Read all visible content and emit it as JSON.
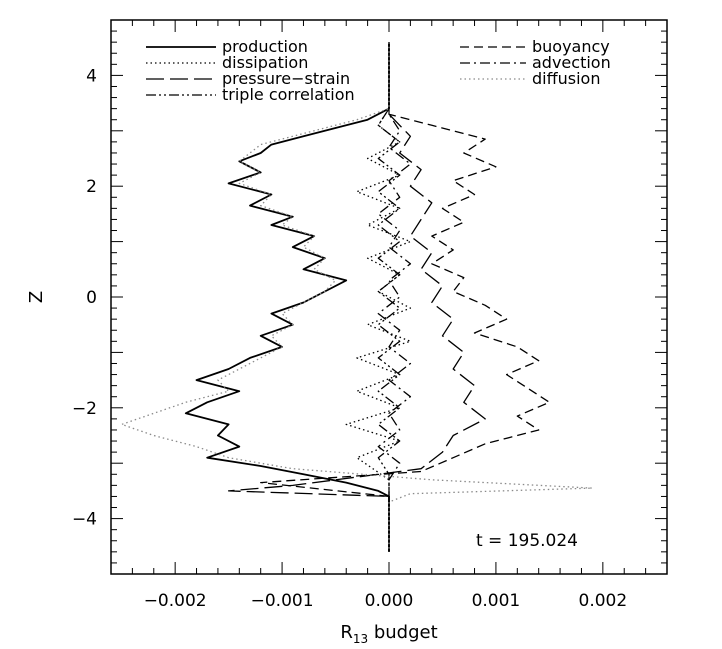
{
  "chart_data": {
    "type": "line",
    "title": "",
    "xlabel": "R",
    "xlabel_sub": "13",
    "xlabel_suffix": " budget",
    "ylabel": "Z",
    "xlim": [
      -0.0026,
      0.0026
    ],
    "ylim": [
      -5,
      5
    ],
    "x_ticks": [
      -0.002,
      -0.001,
      0.0,
      0.001,
      0.002
    ],
    "x_tick_labels": [
      "−0.002",
      "−0.001",
      "0.000",
      "0.001",
      "0.002"
    ],
    "y_ticks": [
      -4,
      -2,
      0,
      2,
      4
    ],
    "y_tick_labels": [
      "−4",
      "−2",
      "0",
      "2",
      "4"
    ],
    "grid": false,
    "annotation": "t = 195.024",
    "legend_left": [
      "production",
      "dissipation",
      "pressure−strain",
      "triple correlation"
    ],
    "legend_right": [
      "buoyancy",
      "advection",
      "diffusion"
    ],
    "series": [
      {
        "name": "production",
        "style": "solid",
        "color": "#000000",
        "points": [
          [
            0.0,
            4.6
          ],
          [
            0.0,
            3.4
          ],
          [
            -0.0002,
            3.2
          ],
          [
            -0.0005,
            3.05
          ],
          [
            -0.0008,
            2.9
          ],
          [
            -0.0011,
            2.75
          ],
          [
            -0.0012,
            2.6
          ],
          [
            -0.0014,
            2.45
          ],
          [
            -0.0012,
            2.25
          ],
          [
            -0.0015,
            2.05
          ],
          [
            -0.0011,
            1.85
          ],
          [
            -0.0013,
            1.65
          ],
          [
            -0.0009,
            1.45
          ],
          [
            -0.0011,
            1.3
          ],
          [
            -0.0007,
            1.1
          ],
          [
            -0.0009,
            0.9
          ],
          [
            -0.0006,
            0.7
          ],
          [
            -0.0008,
            0.5
          ],
          [
            -0.0004,
            0.3
          ],
          [
            -0.0006,
            0.1
          ],
          [
            -0.0008,
            -0.1
          ],
          [
            -0.0011,
            -0.3
          ],
          [
            -0.0009,
            -0.5
          ],
          [
            -0.0012,
            -0.7
          ],
          [
            -0.001,
            -0.9
          ],
          [
            -0.0013,
            -1.1
          ],
          [
            -0.0015,
            -1.3
          ],
          [
            -0.0018,
            -1.5
          ],
          [
            -0.0014,
            -1.7
          ],
          [
            -0.0017,
            -1.9
          ],
          [
            -0.0019,
            -2.1
          ],
          [
            -0.0015,
            -2.3
          ],
          [
            -0.0016,
            -2.5
          ],
          [
            -0.0014,
            -2.7
          ],
          [
            -0.0017,
            -2.9
          ],
          [
            -0.0012,
            -3.05
          ],
          [
            -0.0008,
            -3.2
          ],
          [
            -0.0004,
            -3.35
          ],
          [
            -0.0001,
            -3.5
          ],
          [
            0.0,
            -3.6
          ],
          [
            0.0,
            -4.6
          ]
        ]
      },
      {
        "name": "dissipation",
        "style": "dotted",
        "color": "#000000",
        "points": [
          [
            0.0,
            4.6
          ],
          [
            0.0,
            3.4
          ],
          [
            -0.0001,
            3.1
          ],
          [
            0.0001,
            2.8
          ],
          [
            -0.0002,
            2.5
          ],
          [
            0.0001,
            2.2
          ],
          [
            -0.0003,
            1.9
          ],
          [
            0.0001,
            1.6
          ],
          [
            -0.0002,
            1.3
          ],
          [
            0.0002,
            1.0
          ],
          [
            -0.0002,
            0.7
          ],
          [
            0.0001,
            0.4
          ],
          [
            -0.0001,
            0.1
          ],
          [
            0.0002,
            -0.2
          ],
          [
            -0.0002,
            -0.5
          ],
          [
            0.0002,
            -0.8
          ],
          [
            -0.0003,
            -1.1
          ],
          [
            0.0001,
            -1.4
          ],
          [
            -0.0003,
            -1.7
          ],
          [
            0.0001,
            -2.0
          ],
          [
            -0.0004,
            -2.3
          ],
          [
            0.0001,
            -2.6
          ],
          [
            -0.0003,
            -2.9
          ],
          [
            0.0,
            -3.3
          ],
          [
            0.0,
            -4.6
          ]
        ]
      },
      {
        "name": "pressure−strain",
        "style": "longdash",
        "color": "#000000",
        "points": [
          [
            0.0,
            4.6
          ],
          [
            0.0,
            3.3
          ],
          [
            0.0001,
            3.1
          ],
          [
            0.0002,
            2.9
          ],
          [
            0.0001,
            2.6
          ],
          [
            0.0003,
            2.3
          ],
          [
            0.0002,
            2.0
          ],
          [
            0.0004,
            1.7
          ],
          [
            0.0003,
            1.4
          ],
          [
            0.0002,
            1.1
          ],
          [
            0.0004,
            0.8
          ],
          [
            0.0003,
            0.5
          ],
          [
            0.0005,
            0.2
          ],
          [
            0.0004,
            -0.1
          ],
          [
            0.0006,
            -0.4
          ],
          [
            0.0005,
            -0.7
          ],
          [
            0.0007,
            -1.0
          ],
          [
            0.0006,
            -1.3
          ],
          [
            0.0008,
            -1.6
          ],
          [
            0.0007,
            -1.9
          ],
          [
            0.0009,
            -2.2
          ],
          [
            0.0006,
            -2.5
          ],
          [
            0.0005,
            -2.8
          ],
          [
            0.0003,
            -3.1
          ],
          [
            -0.0009,
            -3.4
          ],
          [
            -0.0015,
            -3.5
          ],
          [
            0.0,
            -3.6
          ],
          [
            0.0,
            -4.6
          ]
        ]
      },
      {
        "name": "triple correlation",
        "style": "dashdotdot",
        "color": "#000000",
        "points": [
          [
            0.0,
            4.6
          ],
          [
            0.0,
            3.4
          ],
          [
            -0.0001,
            3.1
          ],
          [
            0.0001,
            2.8
          ],
          [
            -0.0001,
            2.5
          ],
          [
            0.0001,
            2.2
          ],
          [
            -0.0001,
            1.9
          ],
          [
            0.0001,
            1.6
          ],
          [
            -0.0001,
            1.3
          ],
          [
            0.0001,
            1.0
          ],
          [
            -0.0001,
            0.7
          ],
          [
            0.0001,
            0.4
          ],
          [
            -0.0001,
            0.1
          ],
          [
            0.0001,
            -0.2
          ],
          [
            -0.0001,
            -0.5
          ],
          [
            0.0001,
            -0.8
          ],
          [
            -0.0001,
            -1.1
          ],
          [
            0.0001,
            -1.4
          ],
          [
            -0.0001,
            -1.7
          ],
          [
            0.0001,
            -2.0
          ],
          [
            -0.0001,
            -2.3
          ],
          [
            0.0001,
            -2.6
          ],
          [
            -0.0001,
            -2.9
          ],
          [
            0.0,
            -3.2
          ],
          [
            0.0,
            -4.6
          ]
        ]
      },
      {
        "name": "buoyancy",
        "style": "dashed",
        "color": "#000000",
        "points": [
          [
            0.0,
            4.6
          ],
          [
            0.0,
            3.3
          ],
          [
            0.0004,
            3.1
          ],
          [
            0.0009,
            2.85
          ],
          [
            0.0007,
            2.6
          ],
          [
            0.001,
            2.35
          ],
          [
            0.0006,
            2.1
          ],
          [
            0.0008,
            1.85
          ],
          [
            0.0005,
            1.6
          ],
          [
            0.0007,
            1.35
          ],
          [
            0.0004,
            1.1
          ],
          [
            0.0006,
            0.85
          ],
          [
            0.0004,
            0.6
          ],
          [
            0.0007,
            0.35
          ],
          [
            0.0006,
            0.1
          ],
          [
            0.0009,
            -0.15
          ],
          [
            0.0011,
            -0.4
          ],
          [
            0.0008,
            -0.65
          ],
          [
            0.0012,
            -0.9
          ],
          [
            0.0014,
            -1.15
          ],
          [
            0.0011,
            -1.4
          ],
          [
            0.0013,
            -1.65
          ],
          [
            0.0015,
            -1.9
          ],
          [
            0.0012,
            -2.15
          ],
          [
            0.0014,
            -2.4
          ],
          [
            0.0009,
            -2.65
          ],
          [
            0.0006,
            -2.9
          ],
          [
            0.0003,
            -3.15
          ],
          [
            -0.0012,
            -3.35
          ],
          [
            0.0,
            -3.6
          ],
          [
            0.0,
            -4.6
          ]
        ]
      },
      {
        "name": "advection",
        "style": "dashdot",
        "color": "#000000",
        "points": [
          [
            0.0,
            4.6
          ],
          [
            0.0,
            3.3
          ],
          [
            0.0001,
            3.0
          ],
          [
            0.0,
            2.7
          ],
          [
            0.0002,
            2.4
          ],
          [
            0.0,
            2.1
          ],
          [
            0.0001,
            1.8
          ],
          [
            -0.0001,
            1.5
          ],
          [
            0.0001,
            1.2
          ],
          [
            0.0,
            0.9
          ],
          [
            0.0002,
            0.6
          ],
          [
            0.0,
            0.3
          ],
          [
            0.0001,
            0.0
          ],
          [
            -0.0001,
            -0.3
          ],
          [
            0.0001,
            -0.6
          ],
          [
            0.0,
            -0.9
          ],
          [
            0.0002,
            -1.2
          ],
          [
            0.0,
            -1.5
          ],
          [
            0.0002,
            -1.8
          ],
          [
            0.0,
            -2.1
          ],
          [
            0.0001,
            -2.4
          ],
          [
            -0.0001,
            -2.7
          ],
          [
            0.0001,
            -3.0
          ],
          [
            0.0,
            -3.3
          ],
          [
            0.0,
            -4.6
          ]
        ]
      },
      {
        "name": "diffusion",
        "style": "dotted",
        "color": "#8a8a8a",
        "points": [
          [
            0.0,
            4.6
          ],
          [
            0.0,
            3.4
          ],
          [
            -0.0003,
            3.2
          ],
          [
            -0.0006,
            3.05
          ],
          [
            -0.0009,
            2.9
          ],
          [
            -0.0012,
            2.75
          ],
          [
            -0.0013,
            2.6
          ],
          [
            -0.0014,
            2.45
          ],
          [
            -0.0012,
            2.25
          ],
          [
            -0.0014,
            2.05
          ],
          [
            -0.0011,
            1.85
          ],
          [
            -0.0012,
            1.65
          ],
          [
            -0.0009,
            1.45
          ],
          [
            -0.001,
            1.3
          ],
          [
            -0.0007,
            1.1
          ],
          [
            -0.0008,
            0.9
          ],
          [
            -0.0006,
            0.7
          ],
          [
            -0.0007,
            0.5
          ],
          [
            -0.0005,
            0.3
          ],
          [
            -0.0006,
            0.1
          ],
          [
            -0.0008,
            -0.1
          ],
          [
            -0.001,
            -0.3
          ],
          [
            -0.0009,
            -0.5
          ],
          [
            -0.0011,
            -0.7
          ],
          [
            -0.001,
            -0.9
          ],
          [
            -0.0012,
            -1.1
          ],
          [
            -0.0014,
            -1.3
          ],
          [
            -0.0016,
            -1.5
          ],
          [
            -0.0015,
            -1.7
          ],
          [
            -0.0019,
            -1.9
          ],
          [
            -0.0022,
            -2.1
          ],
          [
            -0.0025,
            -2.3
          ],
          [
            -0.0022,
            -2.5
          ],
          [
            -0.0018,
            -2.7
          ],
          [
            -0.0015,
            -2.9
          ],
          [
            -0.0009,
            -3.1
          ],
          [
            0.0004,
            -3.3
          ],
          [
            0.0019,
            -3.45
          ],
          [
            0.0002,
            -3.55
          ],
          [
            0.0,
            -3.7
          ],
          [
            0.0,
            -4.6
          ]
        ]
      }
    ]
  }
}
